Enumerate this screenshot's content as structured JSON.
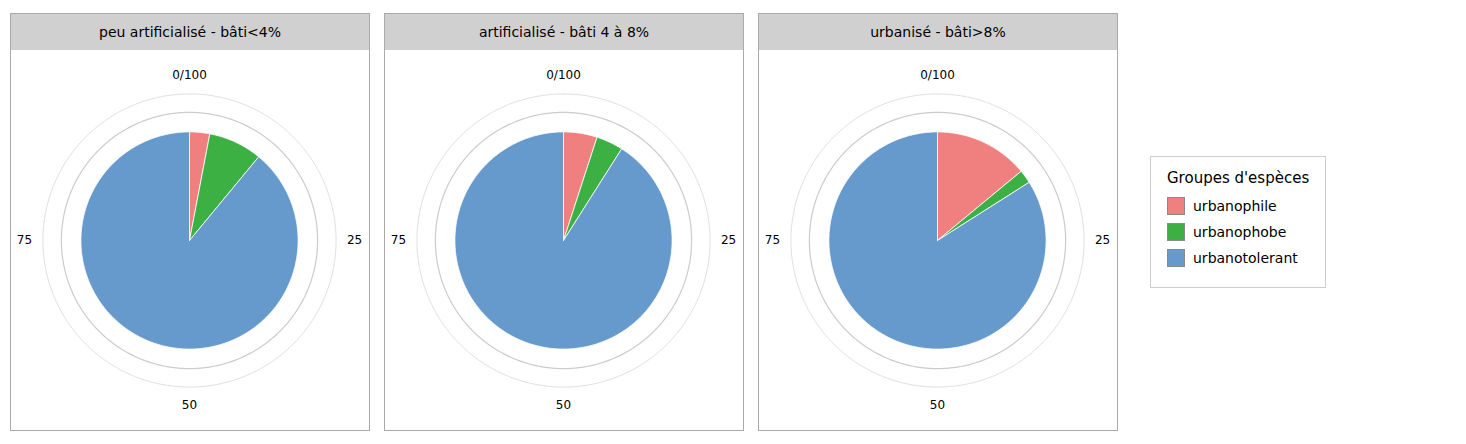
{
  "chart_data": {
    "type": "pie",
    "categories": [
      "urbanophile",
      "urbanophobe",
      "urbanotolerant"
    ],
    "colors": [
      "#f08080",
      "#3cb043",
      "#6699cc"
    ],
    "legend": "right",
    "legend_title": "Groupes d'espèces",
    "ticks": [
      {
        "value": 0,
        "label": "0/100"
      },
      25,
      50,
      75
    ],
    "panels": [
      {
        "title": "peu artificialisé - bâti<4%",
        "values": [
          3,
          8,
          89
        ]
      },
      {
        "title": "artificialisé - bâti 4 à 8%",
        "values": [
          5,
          4,
          91
        ]
      },
      {
        "title": "urbanisé - bâti>8%",
        "values": [
          14,
          2,
          84
        ]
      }
    ]
  }
}
